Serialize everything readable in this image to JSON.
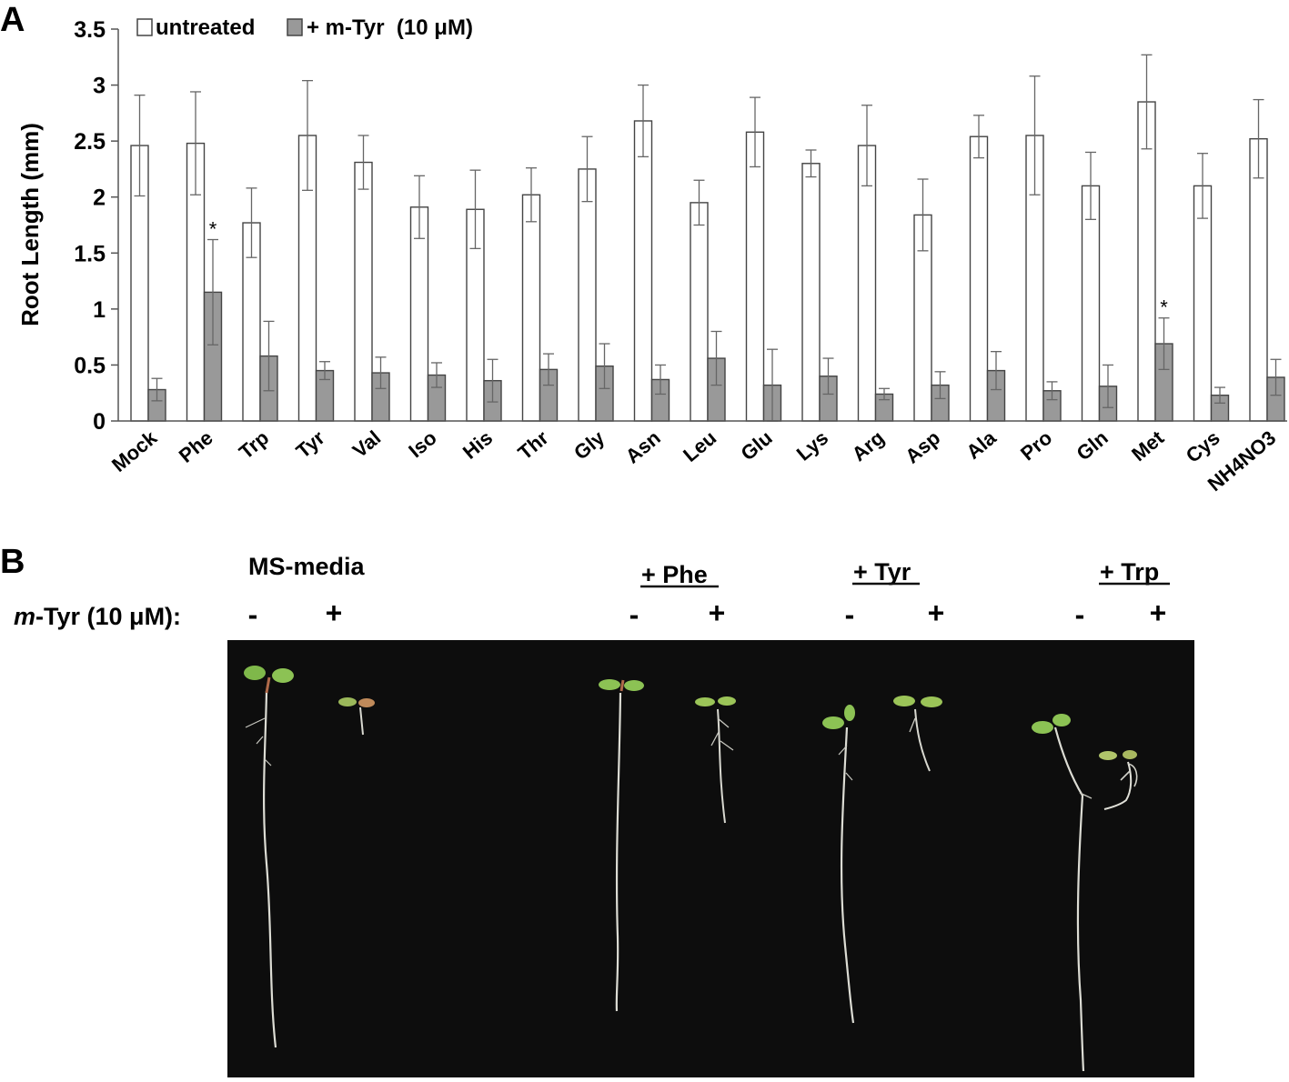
{
  "panel_a_label": "A",
  "panel_b_label": "B",
  "chart_data": {
    "type": "bar",
    "ylabel": "Root Length (mm)",
    "xlabel": "",
    "ylim": [
      0,
      3.5
    ],
    "yticks": [
      "0",
      "0.5",
      "1",
      "1.5",
      "2",
      "2.5",
      "3",
      "3.5"
    ],
    "grid": false,
    "legend_position": "top-left",
    "categories": [
      "Mock",
      "Phe",
      "Trp",
      "Tyr",
      "Val",
      "Iso",
      "His",
      "Thr",
      "Gly",
      "Asn",
      "Leu",
      "Glu",
      "Lys",
      "Arg",
      "Asp",
      "Ala",
      "Pro",
      "Gln",
      "Met",
      "Cys",
      "NH4NO3"
    ],
    "series": [
      {
        "name": "untreated",
        "color": "#ffffff",
        "values": [
          2.46,
          2.48,
          1.77,
          2.55,
          2.31,
          1.91,
          1.89,
          2.02,
          2.25,
          2.68,
          1.95,
          2.58,
          2.3,
          2.46,
          1.84,
          2.54,
          2.55,
          2.1,
          2.85,
          2.1,
          2.52
        ],
        "errors": [
          0.45,
          0.46,
          0.31,
          0.49,
          0.24,
          0.28,
          0.35,
          0.24,
          0.29,
          0.32,
          0.2,
          0.31,
          0.12,
          0.36,
          0.32,
          0.19,
          0.53,
          0.3,
          0.42,
          0.29,
          0.35
        ]
      },
      {
        "name": "+ m-Tyr  (10 μM)",
        "color": "#999999",
        "values": [
          0.28,
          1.15,
          0.58,
          0.45,
          0.43,
          0.41,
          0.36,
          0.46,
          0.49,
          0.37,
          0.56,
          0.32,
          0.4,
          0.24,
          0.32,
          0.45,
          0.27,
          0.31,
          0.69,
          0.23,
          0.39
        ],
        "errors": [
          0.1,
          0.47,
          0.31,
          0.08,
          0.14,
          0.11,
          0.19,
          0.14,
          0.2,
          0.13,
          0.24,
          0.32,
          0.16,
          0.05,
          0.12,
          0.17,
          0.08,
          0.19,
          0.23,
          0.07,
          0.16
        ]
      }
    ],
    "annotations": [
      {
        "text": "*",
        "category": "Phe",
        "series": 1
      },
      {
        "text": "*",
        "category": "Met",
        "series": 1
      }
    ]
  },
  "panel_b": {
    "media_label": "MS-media",
    "group_labels": [
      "+ Phe",
      "+ Tyr",
      "+ Trp"
    ],
    "row_label_italic": "m",
    "row_label_rest": "-Tyr (10 μM):",
    "minus": "-",
    "plus": "+",
    "photo_background": "#0d0d0d"
  }
}
